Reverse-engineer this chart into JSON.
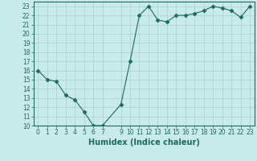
{
  "x": [
    0,
    1,
    2,
    3,
    4,
    5,
    6,
    7,
    9,
    10,
    11,
    12,
    13,
    14,
    15,
    16,
    17,
    18,
    19,
    20,
    21,
    22,
    23
  ],
  "y": [
    16.0,
    15.0,
    14.8,
    13.3,
    12.8,
    11.5,
    10.0,
    10.0,
    12.3,
    17.0,
    22.0,
    23.0,
    21.5,
    21.3,
    22.0,
    22.0,
    22.2,
    22.5,
    23.0,
    22.8,
    22.5,
    21.8,
    23.0
  ],
  "line_color": "#1a6b5e",
  "marker": "D",
  "marker_size": 2.5,
  "bg_color": "#c8eaea",
  "grid_color": "#a8d0d0",
  "xlabel": "Humidex (Indice chaleur)",
  "xlim": [
    -0.5,
    23.5
  ],
  "ylim": [
    10,
    23.5
  ],
  "yticks": [
    10,
    11,
    12,
    13,
    14,
    15,
    16,
    17,
    18,
    19,
    20,
    21,
    22,
    23
  ],
  "xticks": [
    0,
    1,
    2,
    3,
    4,
    5,
    6,
    7,
    9,
    10,
    11,
    12,
    13,
    14,
    15,
    16,
    17,
    18,
    19,
    20,
    21,
    22,
    23
  ],
  "label_fontsize": 7,
  "tick_fontsize": 5.5
}
